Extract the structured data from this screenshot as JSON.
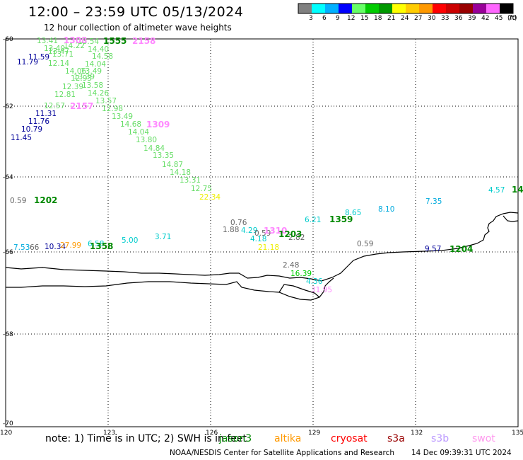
{
  "header": {
    "title": "12:00 – 23:59 UTC 05/13/2024",
    "subtitle": "12 hour collection of altimeter wave heights"
  },
  "legend": {
    "colors": [
      "#808080",
      "#00ffff",
      "#00b0ff",
      "#0000ff",
      "#66ff66",
      "#00cc00",
      "#009900",
      "#ffff00",
      "#ffcc00",
      "#ff9900",
      "#ff0000",
      "#cc0000",
      "#990000",
      "#990099",
      "#ff66ff",
      "#000000"
    ],
    "labels": [
      "3",
      "6",
      "9",
      "12",
      "15",
      "18",
      "21",
      "24",
      "27",
      "30",
      "33",
      "36",
      "39",
      "42",
      "45",
      "70"
    ],
    "unit": "(ft)"
  },
  "axes": {
    "lat_labels": [
      "-60",
      "-62",
      "-64",
      "-66",
      "-68",
      "-70"
    ],
    "lon_labels": [
      "120",
      "123",
      "126",
      "129",
      "132",
      "135"
    ]
  },
  "wave_heights": [
    {
      "text": "13.41",
      "color": "#66dd66"
    },
    {
      "text": "13.40",
      "color": "#66dd66"
    },
    {
      "text": "13.47",
      "color": "#66dd66"
    },
    {
      "text": "13.71",
      "color": "#66dd66"
    },
    {
      "text": "14.22",
      "color": "#66dd66"
    },
    {
      "text": "13.54",
      "color": "#66dd66"
    },
    {
      "text": "11.59",
      "color": "#000099"
    },
    {
      "text": "11.79",
      "color": "#000099"
    },
    {
      "text": "14.40",
      "color": "#66dd66"
    },
    {
      "text": "14.58",
      "color": "#66dd66"
    },
    {
      "text": "12.14",
      "color": "#66dd66"
    },
    {
      "text": "14.04",
      "color": "#66dd66"
    },
    {
      "text": "14.06",
      "color": "#66dd66"
    },
    {
      "text": "13.49",
      "color": "#66dd66"
    },
    {
      "text": "13.39",
      "color": "#66dd66"
    },
    {
      "text": "12.93",
      "color": "#66dd66"
    },
    {
      "text": "12.39",
      "color": "#66dd66"
    },
    {
      "text": "13.58",
      "color": "#66dd66"
    },
    {
      "text": "12.81",
      "color": "#66dd66"
    },
    {
      "text": "14.26",
      "color": "#66dd66"
    },
    {
      "text": "12.57",
      "color": "#66dd66"
    },
    {
      "text": "13.57",
      "color": "#66dd66"
    },
    {
      "text": "12.98",
      "color": "#66dd66"
    },
    {
      "text": "11.31",
      "color": "#000099"
    },
    {
      "text": "13.49",
      "color": "#66dd66"
    },
    {
      "text": "11.76",
      "color": "#000099"
    },
    {
      "text": "14.68",
      "color": "#66dd66"
    },
    {
      "text": "10.79",
      "color": "#000099"
    },
    {
      "text": "14.04",
      "color": "#66dd66"
    },
    {
      "text": "11.45",
      "color": "#000099"
    },
    {
      "text": "13.80",
      "color": "#66dd66"
    },
    {
      "text": "14.84",
      "color": "#66dd66"
    },
    {
      "text": "13.35",
      "color": "#66dd66"
    },
    {
      "text": "14.87",
      "color": "#66dd66"
    },
    {
      "text": "14.18",
      "color": "#66dd66"
    },
    {
      "text": "13.31",
      "color": "#66dd66"
    },
    {
      "text": "12.75",
      "color": "#66dd66"
    },
    {
      "text": "22.34",
      "color": "#eeee00"
    },
    {
      "text": "0.59",
      "color": "#666666"
    },
    {
      "text": "0.76",
      "color": "#666666"
    },
    {
      "text": "1.88",
      "color": "#666666"
    },
    {
      "text": "4.29",
      "color": "#00cccc"
    },
    {
      "text": "0.59",
      "color": "#666666"
    },
    {
      "text": "4.18",
      "color": "#00cccc"
    },
    {
      "text": "2.82",
      "color": "#666666"
    },
    {
      "text": "21.18",
      "color": "#eeee00"
    },
    {
      "text": "6.21",
      "color": "#00cccc"
    },
    {
      "text": "8.65",
      "color": "#00cccc"
    },
    {
      "text": "8.10",
      "color": "#00aadd"
    },
    {
      "text": "7.35",
      "color": "#00aadd"
    },
    {
      "text": "4.57",
      "color": "#00cccc"
    },
    {
      "text": "0.59",
      "color": "#666666"
    },
    {
      "text": "9.57",
      "color": "#000099"
    },
    {
      "text": "7.53",
      "color": "#00aadd"
    },
    {
      "text": "66",
      "color": "#666666"
    },
    {
      "text": "10.34",
      "color": "#000099"
    },
    {
      "text": "27.99",
      "color": "#ff9900"
    },
    {
      "text": "6.58",
      "color": "#00cccc"
    },
    {
      "text": "5.00",
      "color": "#00cccc"
    },
    {
      "text": "3.71",
      "color": "#00cccc"
    },
    {
      "text": "2.48",
      "color": "#666666"
    },
    {
      "text": "16.39",
      "color": "#00cc00"
    },
    {
      "text": "4.36",
      "color": "#00cccc"
    },
    {
      "text": "31.95",
      "color": "#ff88ff"
    }
  ],
  "pass_times": [
    {
      "text": "1308",
      "color": "#ff88ff"
    },
    {
      "text": "1555",
      "color": "#008800"
    },
    {
      "text": "2158",
      "color": "#ff88ff"
    },
    {
      "text": "2157",
      "color": "#ff88ff"
    },
    {
      "text": "1309",
      "color": "#ff88ff"
    },
    {
      "text": "1202",
      "color": "#008800"
    },
    {
      "text": "1310",
      "color": "#ff88ff"
    },
    {
      "text": "1203",
      "color": "#008800"
    },
    {
      "text": "1359",
      "color": "#008800"
    },
    {
      "text": "1204",
      "color": "#008800"
    },
    {
      "text": "1358",
      "color": "#008800"
    },
    {
      "text": "14",
      "color": "#008800"
    }
  ],
  "footer": {
    "note": "note:  1) Time is in UTC; 2) SWH is in feet",
    "missions": [
      {
        "name": "jason3",
        "color": "#008800"
      },
      {
        "name": "altika",
        "color": "#ff9900"
      },
      {
        "name": "cryosat",
        "color": "#ff0000"
      },
      {
        "name": "s3a",
        "color": "#990000"
      },
      {
        "name": "s3b",
        "color": "#bb99ff"
      },
      {
        "name": "swot",
        "color": "#ff99ee"
      }
    ],
    "credit": "NOAA/NESDIS Center for Satellite Applications and Research",
    "issued": "14 Dec 09:39:31 UTC 2024"
  }
}
